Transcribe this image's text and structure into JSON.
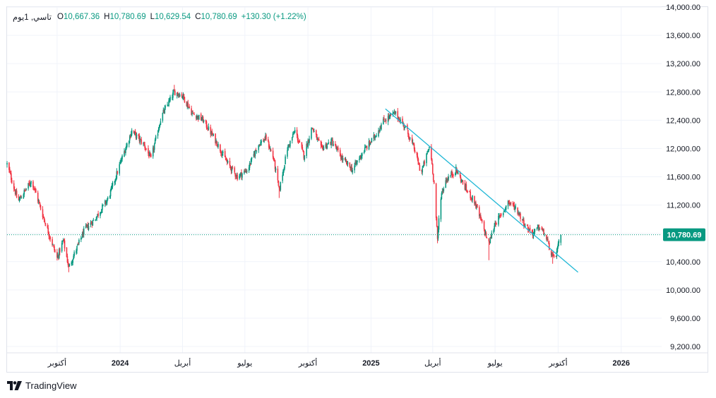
{
  "legend": {
    "symbol": "تاسي, 1يوم",
    "open_key": "O",
    "open": "10,667.36",
    "high_key": "H",
    "high": "10,780.69",
    "low_key": "L",
    "low": "10,629.54",
    "close_key": "C",
    "close": "10,780.69",
    "change": "+130.30 (+1.22%)"
  },
  "brand": {
    "name": "TradingView",
    "icon": "tradingview-logo-icon"
  },
  "colors": {
    "up": "#089981",
    "down": "#f23645",
    "trendline": "#22b8d6",
    "price_label_bg": "#089981",
    "grid": "#f0f3fa",
    "text": "#131722"
  },
  "chart_data": {
    "type": "candlestick",
    "last_price_label": "10,780.69",
    "y_ticks": [
      "14,000.00",
      "13,600.00",
      "13,200.00",
      "12,800.00",
      "12,400.00",
      "12,000.00",
      "11,600.00",
      "11,200.00",
      "10,800.00",
      "10,400.00",
      "10,000.00",
      "9,600.00",
      "9,200.00"
    ],
    "ylim": [
      9200,
      14000
    ],
    "x_ticks": [
      {
        "label": "أكتوبر",
        "date": "2023-10"
      },
      {
        "label": "2024",
        "date": "2024-01"
      },
      {
        "label": "أبريل",
        "date": "2024-04"
      },
      {
        "label": "يوليو",
        "date": "2024-07"
      },
      {
        "label": "أكتوبر",
        "date": "2024-10"
      },
      {
        "label": "2025",
        "date": "2025-01"
      },
      {
        "label": "أبريل",
        "date": "2025-04"
      },
      {
        "label": "يوليو",
        "date": "2025-07"
      },
      {
        "label": "أكتوبر",
        "date": "2025-10"
      },
      {
        "label": "2026",
        "date": "2026-01"
      }
    ],
    "xlim": [
      "2023-07-20",
      "2026-03-01"
    ],
    "price_anchors": [
      [
        "2023-07-20",
        11780
      ],
      [
        "2023-08-05",
        11250
      ],
      [
        "2023-08-25",
        11550
      ],
      [
        "2023-09-12",
        11000
      ],
      [
        "2023-10-01",
        10450
      ],
      [
        "2023-10-10",
        10700
      ],
      [
        "2023-10-18",
        10320
      ],
      [
        "2023-11-10",
        10850
      ],
      [
        "2023-11-25",
        11000
      ],
      [
        "2023-12-15",
        11300
      ],
      [
        "2024-01-05",
        11900
      ],
      [
        "2024-01-18",
        12250
      ],
      [
        "2024-02-05",
        12050
      ],
      [
        "2024-02-15",
        11850
      ],
      [
        "2024-03-01",
        12450
      ],
      [
        "2024-03-20",
        12800
      ],
      [
        "2024-04-01",
        12750
      ],
      [
        "2024-04-15",
        12500
      ],
      [
        "2024-05-01",
        12400
      ],
      [
        "2024-05-20",
        12100
      ],
      [
        "2024-06-05",
        11800
      ],
      [
        "2024-06-20",
        11600
      ],
      [
        "2024-07-05",
        11700
      ],
      [
        "2024-07-20",
        12050
      ],
      [
        "2024-08-01",
        12150
      ],
      [
        "2024-08-12",
        11850
      ],
      [
        "2024-08-20",
        11400
      ],
      [
        "2024-09-01",
        12000
      ],
      [
        "2024-09-12",
        12250
      ],
      [
        "2024-09-25",
        11900
      ],
      [
        "2024-10-07",
        12300
      ],
      [
        "2024-10-20",
        12000
      ],
      [
        "2024-11-05",
        12100
      ],
      [
        "2024-11-20",
        11850
      ],
      [
        "2024-12-05",
        11700
      ],
      [
        "2024-12-20",
        11950
      ],
      [
        "2025-01-05",
        12150
      ],
      [
        "2025-01-20",
        12400
      ],
      [
        "2025-02-05",
        12500
      ],
      [
        "2025-02-20",
        12300
      ],
      [
        "2025-03-05",
        12000
      ],
      [
        "2025-03-15",
        11650
      ],
      [
        "2025-03-28",
        12050
      ],
      [
        "2025-04-03",
        11500
      ],
      [
        "2025-04-08",
        10700
      ],
      [
        "2025-04-12",
        11300
      ],
      [
        "2025-04-20",
        11550
      ],
      [
        "2025-05-05",
        11700
      ],
      [
        "2025-05-18",
        11450
      ],
      [
        "2025-06-01",
        11250
      ],
      [
        "2025-06-15",
        10850
      ],
      [
        "2025-06-22",
        10650
      ],
      [
        "2025-07-01",
        10950
      ],
      [
        "2025-07-10",
        11050
      ],
      [
        "2025-07-20",
        11250
      ],
      [
        "2025-08-01",
        11150
      ],
      [
        "2025-08-15",
        10900
      ],
      [
        "2025-08-25",
        10800
      ],
      [
        "2025-09-05",
        10900
      ],
      [
        "2025-09-15",
        10700
      ],
      [
        "2025-09-23",
        10450
      ],
      [
        "2025-09-28",
        10500
      ],
      [
        "2025-10-05",
        10780.69
      ]
    ],
    "extreme_wicks": [
      {
        "date": "2023-10-18",
        "low": 10250
      },
      {
        "date": "2024-03-20",
        "high": 12900
      },
      {
        "date": "2024-08-20",
        "low": 11300
      },
      {
        "date": "2025-04-08",
        "low": 10660
      },
      {
        "date": "2025-06-22",
        "low": 10420
      },
      {
        "date": "2025-09-23",
        "low": 10370
      }
    ],
    "trendline": {
      "from": [
        "2025-01-22",
        12560
      ],
      "to": [
        "2025-10-30",
        10250
      ]
    },
    "last_price": 10780.69
  }
}
